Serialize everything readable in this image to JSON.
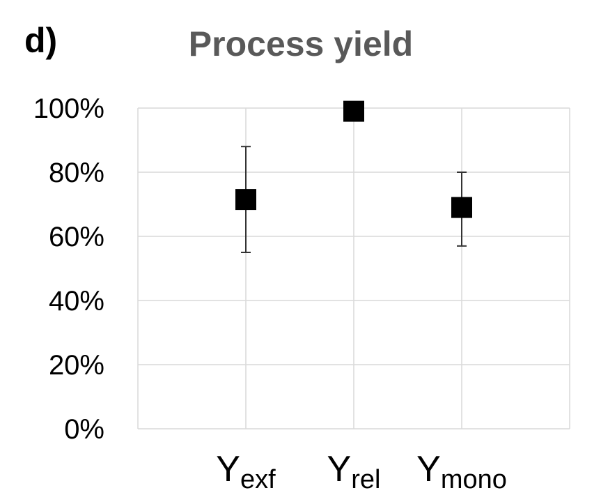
{
  "panel_label": "d)",
  "chart_data": {
    "type": "scatter",
    "title": "Process yield",
    "xlabel": "",
    "ylabel": "",
    "ylim": [
      0,
      100
    ],
    "y_tick_labels": [
      "0%",
      "20%",
      "40%",
      "60%",
      "80%",
      "100%"
    ],
    "y_ticks": [
      0,
      20,
      40,
      60,
      80,
      100
    ],
    "grid": true,
    "marker": "square",
    "marker_color": "#000000",
    "categories": [
      {
        "main": "Y",
        "sub": "exf"
      },
      {
        "main": "Y",
        "sub": "rel"
      },
      {
        "main": "Y",
        "sub": "mono"
      }
    ],
    "values": [
      71.5,
      99,
      69
    ],
    "error_low": [
      55,
      null,
      57
    ],
    "error_high": [
      88,
      null,
      80
    ]
  }
}
